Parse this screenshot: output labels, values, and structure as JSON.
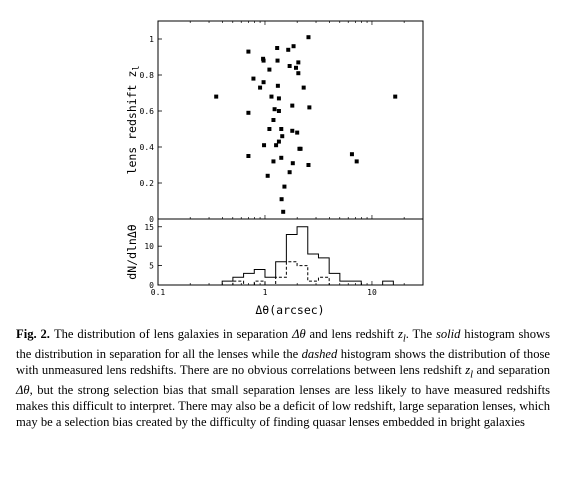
{
  "chart_data": [
    {
      "type": "scatter",
      "title": "",
      "xlabel": "Δθ(arcsec)",
      "ylabel": "lens redshift z",
      "ylabel_subscript": "l",
      "xscale": "log",
      "xlim": [
        0.1,
        30
      ],
      "ylim": [
        0,
        1.1
      ],
      "yticks": [
        0,
        0.2,
        0.4,
        0.6,
        0.8,
        1
      ],
      "ytick_labels": [
        "0",
        "0.2",
        "0.4",
        "0.6",
        "0.8",
        "1"
      ],
      "marker": "filled-square",
      "points": [
        {
          "x": 0.35,
          "y": 0.68
        },
        {
          "x": 0.7,
          "y": 0.93
        },
        {
          "x": 0.78,
          "y": 0.78
        },
        {
          "x": 0.7,
          "y": 0.59
        },
        {
          "x": 0.7,
          "y": 0.35
        },
        {
          "x": 0.96,
          "y": 0.89
        },
        {
          "x": 0.97,
          "y": 0.88
        },
        {
          "x": 0.97,
          "y": 0.76
        },
        {
          "x": 0.9,
          "y": 0.73
        },
        {
          "x": 0.98,
          "y": 0.41
        },
        {
          "x": 1.06,
          "y": 0.24
        },
        {
          "x": 1.1,
          "y": 0.5
        },
        {
          "x": 1.1,
          "y": 0.83
        },
        {
          "x": 1.15,
          "y": 0.68
        },
        {
          "x": 1.2,
          "y": 0.55
        },
        {
          "x": 1.23,
          "y": 0.61
        },
        {
          "x": 1.2,
          "y": 0.32
        },
        {
          "x": 1.27,
          "y": 0.41
        },
        {
          "x": 1.3,
          "y": 0.95
        },
        {
          "x": 1.31,
          "y": 0.88
        },
        {
          "x": 1.32,
          "y": 0.74
        },
        {
          "x": 1.35,
          "y": 0.67
        },
        {
          "x": 1.35,
          "y": 0.6
        },
        {
          "x": 1.35,
          "y": 0.43
        },
        {
          "x": 1.42,
          "y": 0.5
        },
        {
          "x": 1.42,
          "y": 0.34
        },
        {
          "x": 1.45,
          "y": 0.46
        },
        {
          "x": 1.43,
          "y": 0.11
        },
        {
          "x": 1.48,
          "y": 0.04
        },
        {
          "x": 1.52,
          "y": 0.18
        },
        {
          "x": 1.65,
          "y": 0.94
        },
        {
          "x": 1.7,
          "y": 0.85
        },
        {
          "x": 1.7,
          "y": 0.26
        },
        {
          "x": 1.8,
          "y": 0.63
        },
        {
          "x": 1.8,
          "y": 0.49
        },
        {
          "x": 1.82,
          "y": 0.31
        },
        {
          "x": 1.85,
          "y": 0.96
        },
        {
          "x": 1.95,
          "y": 0.84
        },
        {
          "x": 2.05,
          "y": 0.87
        },
        {
          "x": 2.05,
          "y": 0.81
        },
        {
          "x": 2.0,
          "y": 0.48
        },
        {
          "x": 2.1,
          "y": 0.39
        },
        {
          "x": 2.15,
          "y": 0.39
        },
        {
          "x": 2.3,
          "y": 0.73
        },
        {
          "x": 2.55,
          "y": 1.01
        },
        {
          "x": 2.6,
          "y": 0.62
        },
        {
          "x": 2.55,
          "y": 0.3
        },
        {
          "x": 6.5,
          "y": 0.36
        },
        {
          "x": 7.2,
          "y": 0.32
        },
        {
          "x": 16.5,
          "y": 0.68
        }
      ]
    },
    {
      "type": "histogram",
      "title": "",
      "xlabel": "Δθ(arcsec)",
      "ylabel": "dN/dlnΔθ",
      "xscale": "log",
      "xlim": [
        0.1,
        30
      ],
      "ylim": [
        0,
        17
      ],
      "xticks": [
        0.1,
        1,
        10
      ],
      "xtick_labels": [
        "0.1",
        "1",
        "10"
      ],
      "yticks": [
        0,
        5,
        10,
        15
      ],
      "ytick_labels": [
        "0",
        "5",
        "10",
        "15"
      ],
      "bins_per_dex": 10,
      "bin_edges_log10": [
        -0.4,
        -0.3,
        -0.2,
        -0.1,
        0.0,
        0.1,
        0.2,
        0.3,
        0.4,
        0.5,
        0.6,
        0.7,
        0.8,
        0.9,
        1.0,
        1.1,
        1.2,
        1.3
      ],
      "series": [
        {
          "style": "solid",
          "values": [
            1,
            2,
            3,
            4,
            2,
            6,
            13,
            15,
            8,
            7,
            3,
            1,
            1,
            0,
            0,
            1,
            0
          ]
        },
        {
          "style": "dashed",
          "values": [
            0,
            1,
            0,
            1,
            0,
            2,
            6,
            5,
            1,
            2,
            0,
            0,
            0,
            0,
            0,
            0,
            0
          ]
        }
      ]
    }
  ],
  "caption": {
    "label": "Fig. 2.",
    "parts": [
      {
        "text": "The distribution of lens galaxies in separation ",
        "italic": false
      },
      {
        "text": "Δθ",
        "italic": true
      },
      {
        "text": " and lens redshift ",
        "italic": false
      },
      {
        "text": "z",
        "italic": true
      },
      {
        "text": "l",
        "italic": true,
        "sub": true
      },
      {
        "text": ". The ",
        "italic": false
      },
      {
        "text": "solid",
        "italic": true
      },
      {
        "text": " histogram shows the distribution in separation for all the lenses while the ",
        "italic": false
      },
      {
        "text": "dashed",
        "italic": true
      },
      {
        "text": " histogram shows the distribution of those with unmeasured lens redshifts. There are no obvious correlations between lens redshift ",
        "italic": false
      },
      {
        "text": "z",
        "italic": true
      },
      {
        "text": "l",
        "italic": true,
        "sub": true
      },
      {
        "text": " and separation ",
        "italic": false
      },
      {
        "text": "Δθ",
        "italic": true
      },
      {
        "text": ", but the strong selection bias that small separation lenses are less likely to have measured redshifts makes this difficult to interpret. There may also be a deficit of low redshift, large separation lenses, which may be a selection bias created by the difficulty of finding quasar lenses embedded in bright galaxies",
        "italic": false
      }
    ]
  }
}
